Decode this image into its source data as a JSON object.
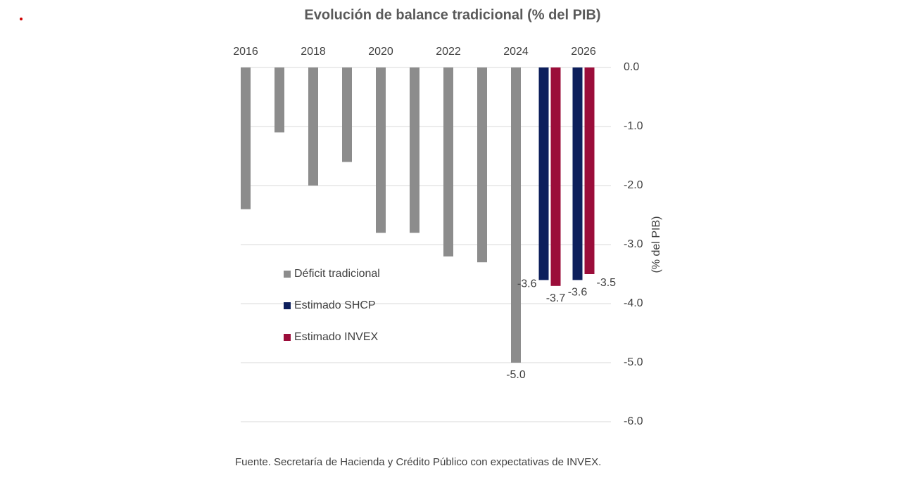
{
  "chart_data": {
    "type": "bar",
    "title": "Evolución de balance tradicional (% del PIB)",
    "y_axis_label": "(% del PIB)",
    "source": "Fuente. Secretaría de Hacienda y Crédito Público con expectativas de INVEX.",
    "categories": [
      "2016",
      null,
      "2018",
      null,
      "2020",
      null,
      "2022",
      null,
      "2024",
      null,
      "2026"
    ],
    "series": [
      {
        "name": "Déficit tradicional",
        "color": "#8c8c8c",
        "values": [
          -2.4,
          -1.1,
          -2.0,
          -1.6,
          -2.8,
          -2.8,
          -3.2,
          -3.3,
          -5.0,
          null,
          null
        ],
        "value_labels": [
          null,
          null,
          null,
          null,
          null,
          null,
          null,
          null,
          "-5.0",
          null,
          null
        ]
      },
      {
        "name": "Estimado SHCP",
        "color": "#0d1f5c",
        "values": [
          null,
          null,
          null,
          null,
          null,
          null,
          null,
          null,
          null,
          -3.6,
          -3.6
        ],
        "value_labels": [
          null,
          null,
          null,
          null,
          null,
          null,
          null,
          null,
          null,
          "-3.6",
          "-3.6"
        ]
      },
      {
        "name": "Estimado INVEX",
        "color": "#9b0d3a",
        "values": [
          null,
          null,
          null,
          null,
          null,
          null,
          null,
          null,
          null,
          -3.7,
          -3.5
        ],
        "value_labels": [
          null,
          null,
          null,
          null,
          null,
          null,
          null,
          null,
          null,
          "-3.7",
          "-3.5"
        ]
      }
    ],
    "ylim": [
      -6,
      0
    ],
    "yticks": [
      {
        "value": 0,
        "label": "0.0"
      },
      {
        "value": -1,
        "label": "-1.0"
      },
      {
        "value": -2,
        "label": "-2.0"
      },
      {
        "value": -3,
        "label": "-3.0"
      },
      {
        "value": -4,
        "label": "-4.0"
      },
      {
        "value": -5,
        "label": "-5.0"
      },
      {
        "value": -6,
        "label": "-6.0"
      }
    ],
    "grid": true,
    "legend": "left"
  }
}
